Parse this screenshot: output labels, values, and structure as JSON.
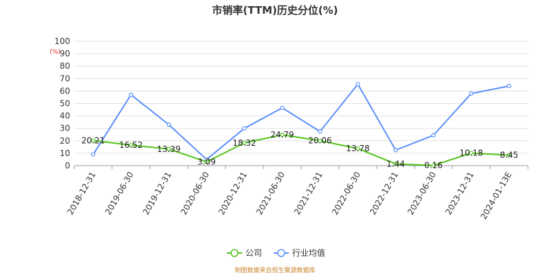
{
  "chart_data": {
    "type": "line",
    "title": "市销率(TTM)历史分位(%)",
    "ylabel": "(%)",
    "ylim": [
      0,
      100
    ],
    "yticks": [
      0,
      10,
      20,
      30,
      40,
      50,
      60,
      70,
      80,
      90,
      100
    ],
    "grid": true,
    "legend_position": "bottom",
    "categories": [
      "2018-12-31",
      "2019-06-30",
      "2019-12-31",
      "2020-06-30",
      "2020-12-31",
      "2021-06-30",
      "2021-12-31",
      "2022-06-30",
      "2022-12-31",
      "2023-06-30",
      "2023-12-31",
      "2024-01-13E"
    ],
    "series": [
      {
        "name": "公司",
        "color": "#52c41a",
        "values": [
          20.21,
          16.52,
          13.39,
          3.09,
          18.32,
          24.79,
          20.06,
          13.78,
          1.44,
          0.16,
          10.18,
          8.45
        ],
        "labels": [
          "20.21",
          "16.52",
          "13.39",
          "3.09",
          "18.32",
          "24.79",
          "20.06",
          "13.78",
          "1.44",
          "0.16",
          "10.18",
          "8.45"
        ]
      },
      {
        "name": "行业均值",
        "color": "#5b8ff9",
        "values": [
          9,
          57,
          33,
          5,
          30,
          46.5,
          27.5,
          65.5,
          12.5,
          24.5,
          58,
          64
        ]
      }
    ],
    "source": "制图数据来自恒生聚源数据库"
  }
}
